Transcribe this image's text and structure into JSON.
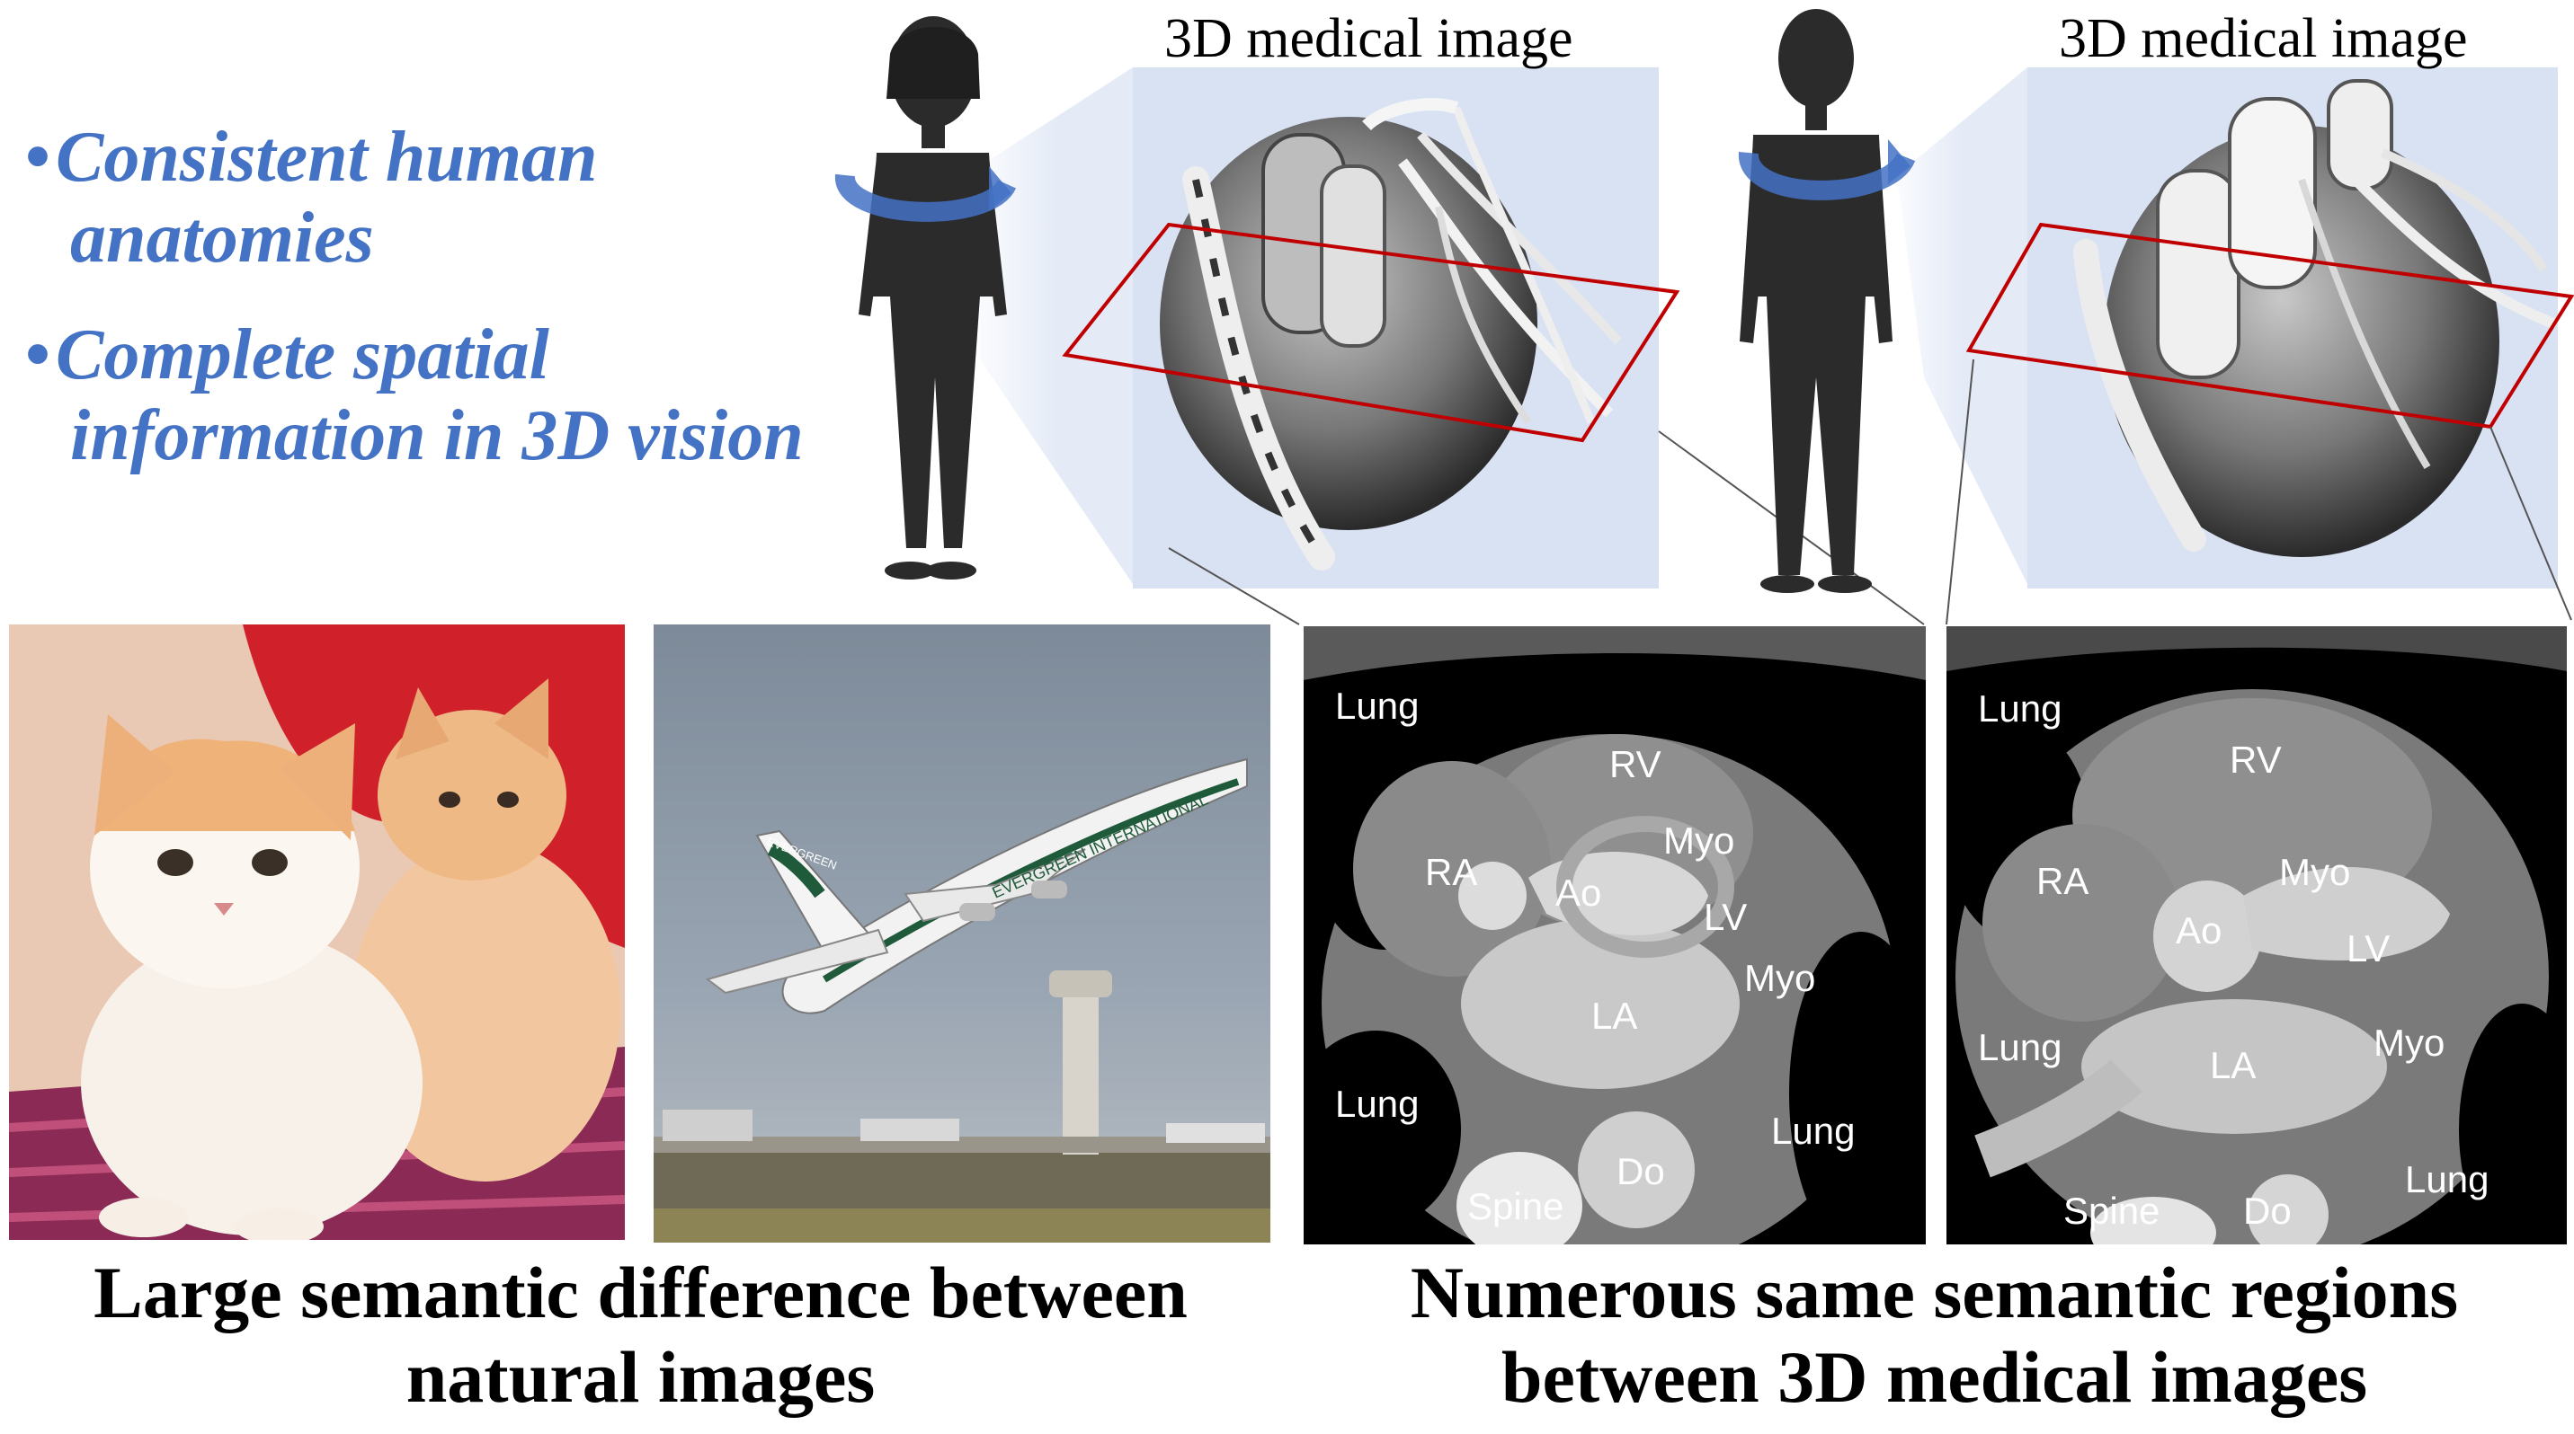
{
  "bullets": [
    {
      "line1": "Consistent human",
      "line2": "anatomies"
    },
    {
      "line1": "Complete spatial",
      "line2": "information in 3D vision"
    }
  ],
  "volume_titles": [
    "3D medical image",
    "3D medical image"
  ],
  "captions": {
    "left": {
      "line1": "Large semantic difference between",
      "line2": "natural images"
    },
    "right": {
      "line1": "Numerous same semantic regions",
      "line2": "between 3D medical images"
    }
  },
  "photo_text": {
    "airline": "EVERGREEN INTERNATIONAL",
    "tail": "EVERGREEN"
  },
  "ct1_labels": {
    "lung_tl": "Lung",
    "rv": "RV",
    "ra": "RA",
    "myo_top": "Myo",
    "ao": "Ao",
    "lv": "LV",
    "la": "LA",
    "myo_bottom": "Myo",
    "lung_bl": "Lung",
    "lung_br": "Lung",
    "do": "Do",
    "spine": "Spine"
  },
  "ct2_labels": {
    "lung_tl": "Lung",
    "rv": "RV",
    "ra": "RA",
    "myo_top": "Myo",
    "ao": "Ao",
    "lv": "LV",
    "lung_ml": "Lung",
    "la": "LA",
    "myo_bottom": "Myo",
    "lung_br": "Lung",
    "spine": "Spine",
    "do": "Do"
  },
  "colors": {
    "accent": "#4472c4",
    "plane": "#d9e2f3",
    "slice": "#c00000",
    "ct_bg": "#000000"
  }
}
